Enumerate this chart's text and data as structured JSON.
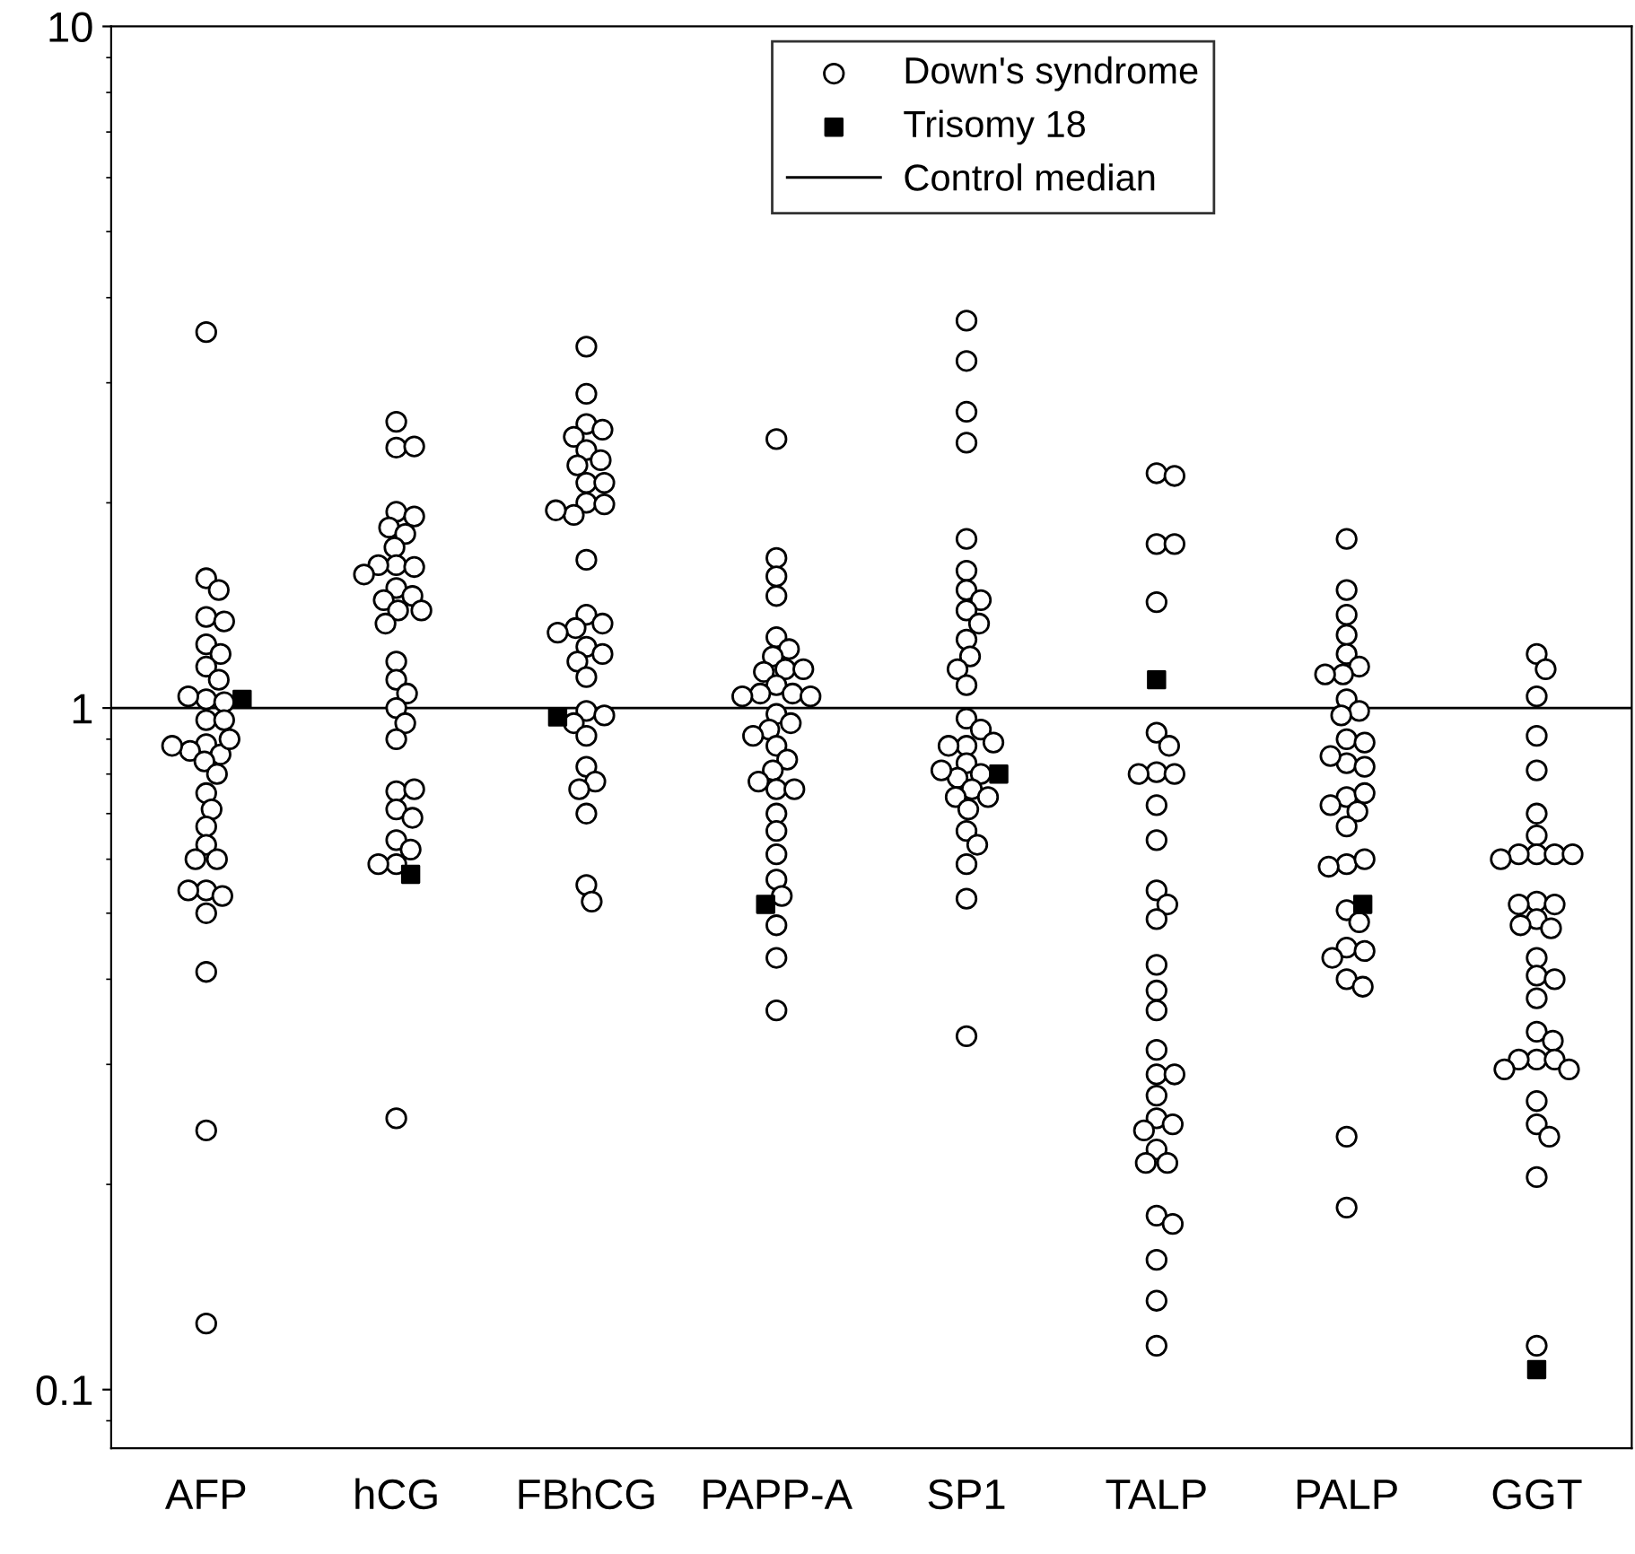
{
  "chart_data": {
    "type": "scatter",
    "categories": [
      "AFP",
      "hCG",
      "FBhCG",
      "PAPP-A",
      "SP1",
      "TALP",
      "PALP",
      "GGT"
    ],
    "log": true,
    "ylim": [
      0.082,
      10
    ],
    "yticks": [
      0.1,
      1,
      10
    ],
    "grid": false,
    "legend": "top",
    "series": [
      {
        "name": "Down's syndrome",
        "color": "#000000",
        "marker": "circle",
        "x": [
          "AFP",
          "AFP",
          "AFP",
          "AFP",
          "AFP",
          "AFP",
          "AFP",
          "AFP",
          "AFP",
          "AFP",
          "AFP",
          "AFP",
          "AFP",
          "AFP",
          "AFP",
          "AFP",
          "AFP",
          "AFP",
          "AFP",
          "AFP",
          "AFP",
          "AFP",
          "AFP",
          "AFP",
          "AFP",
          "AFP",
          "AFP",
          "AFP",
          "AFP",
          "AFP",
          "AFP",
          "AFP",
          "AFP",
          "AFP",
          "hCG",
          "hCG",
          "hCG",
          "hCG",
          "hCG",
          "hCG",
          "hCG",
          "hCG",
          "hCG",
          "hCG",
          "hCG",
          "hCG",
          "hCG",
          "hCG",
          "hCG",
          "hCG",
          "hCG",
          "hCG",
          "hCG",
          "hCG",
          "hCG",
          "hCG",
          "hCG",
          "hCG",
          "hCG",
          "hCG",
          "hCG",
          "hCG",
          "hCG",
          "hCG",
          "hCG",
          "hCG",
          "hCG",
          "FBhCG",
          "FBhCG",
          "FBhCG",
          "FBhCG",
          "FBhCG",
          "FBhCG",
          "FBhCG",
          "FBhCG",
          "FBhCG",
          "FBhCG",
          "FBhCG",
          "FBhCG",
          "FBhCG",
          "FBhCG",
          "FBhCG",
          "FBhCG",
          "FBhCG",
          "FBhCG",
          "FBhCG",
          "FBhCG",
          "FBhCG",
          "FBhCG",
          "FBhCG",
          "FBhCG",
          "FBhCG",
          "FBhCG",
          "FBhCG",
          "FBhCG",
          "FBhCG",
          "FBhCG",
          "FBhCG",
          "FBhCG",
          "FBhCG",
          "PAPP-A",
          "PAPP-A",
          "PAPP-A",
          "PAPP-A",
          "PAPP-A",
          "PAPP-A",
          "PAPP-A",
          "PAPP-A",
          "PAPP-A",
          "PAPP-A",
          "PAPP-A",
          "PAPP-A",
          "PAPP-A",
          "PAPP-A",
          "PAPP-A",
          "PAPP-A",
          "PAPP-A",
          "PAPP-A",
          "PAPP-A",
          "PAPP-A",
          "PAPP-A",
          "PAPP-A",
          "PAPP-A",
          "PAPP-A",
          "PAPP-A",
          "PAPP-A",
          "PAPP-A",
          "PAPP-A",
          "PAPP-A",
          "PAPP-A",
          "PAPP-A",
          "PAPP-A",
          "PAPP-A",
          "SP1",
          "SP1",
          "SP1",
          "SP1",
          "SP1",
          "SP1",
          "SP1",
          "SP1",
          "SP1",
          "SP1",
          "SP1",
          "SP1",
          "SP1",
          "SP1",
          "SP1",
          "SP1",
          "SP1",
          "SP1",
          "SP1",
          "SP1",
          "SP1",
          "SP1",
          "SP1",
          "SP1",
          "SP1",
          "SP1",
          "SP1",
          "SP1",
          "SP1",
          "SP1",
          "SP1",
          "SP1",
          "TALP",
          "TALP",
          "TALP",
          "TALP",
          "TALP",
          "TALP",
          "TALP",
          "TALP",
          "TALP",
          "TALP",
          "TALP",
          "TALP",
          "TALP",
          "TALP",
          "TALP",
          "TALP",
          "TALP",
          "TALP",
          "TALP",
          "TALP",
          "TALP",
          "TALP",
          "TALP",
          "TALP",
          "TALP",
          "TALP",
          "TALP",
          "TALP",
          "TALP",
          "TALP",
          "TALP",
          "TALP",
          "TALP",
          "PALP",
          "PALP",
          "PALP",
          "PALP",
          "PALP",
          "PALP",
          "PALP",
          "PALP",
          "PALP",
          "PALP",
          "PALP",
          "PALP",
          "PALP",
          "PALP",
          "PALP",
          "PALP",
          "PALP",
          "PALP",
          "PALP",
          "PALP",
          "PALP",
          "PALP",
          "PALP",
          "PALP",
          "PALP",
          "PALP",
          "PALP",
          "PALP",
          "PALP",
          "PALP",
          "PALP",
          "PALP",
          "PALP",
          "GGT",
          "GGT",
          "GGT",
          "GGT",
          "GGT",
          "GGT",
          "GGT",
          "GGT",
          "GGT",
          "GGT",
          "GGT",
          "GGT",
          "GGT",
          "GGT",
          "GGT",
          "GGT",
          "GGT",
          "GGT",
          "GGT",
          "GGT",
          "GGT",
          "GGT",
          "GGT",
          "GGT",
          "GGT",
          "GGT",
          "GGT",
          "GGT",
          "GGT",
          "GGT",
          "GGT",
          "GGT",
          "GGT",
          "GGT"
        ],
        "values": [
          3.56,
          1.55,
          1.49,
          1.36,
          1.34,
          1.24,
          1.2,
          1.15,
          1.1,
          1.03,
          1.02,
          1.04,
          0.96,
          0.96,
          0.885,
          0.855,
          0.865,
          0.9,
          0.88,
          0.835,
          0.8,
          0.75,
          0.71,
          0.67,
          0.63,
          0.6,
          0.6,
          0.54,
          0.53,
          0.54,
          0.5,
          0.41,
          0.24,
          0.125,
          2.63,
          2.41,
          2.42,
          1.94,
          1.91,
          1.84,
          1.8,
          1.72,
          1.62,
          1.61,
          1.62,
          1.57,
          1.5,
          1.46,
          1.44,
          1.39,
          1.39,
          1.33,
          1.17,
          1.1,
          1.05,
          1.0,
          0.95,
          0.9,
          0.755,
          0.76,
          0.71,
          0.69,
          0.64,
          0.62,
          0.59,
          0.59,
          0.25,
          3.39,
          2.89,
          2.61,
          2.56,
          2.5,
          2.39,
          2.31,
          2.27,
          2.14,
          2.14,
          2.0,
          1.99,
          1.92,
          1.95,
          1.65,
          1.37,
          1.33,
          1.31,
          1.29,
          1.23,
          1.2,
          1.17,
          1.11,
          0.99,
          0.975,
          0.95,
          0.91,
          0.82,
          0.78,
          0.76,
          0.7,
          0.55,
          0.52,
          2.48,
          1.66,
          1.56,
          1.46,
          1.27,
          1.22,
          1.19,
          1.14,
          1.13,
          1.14,
          1.08,
          1.05,
          1.05,
          1.04,
          1.04,
          0.98,
          0.95,
          0.93,
          0.91,
          0.88,
          0.84,
          0.81,
          0.76,
          0.76,
          0.78,
          0.7,
          0.66,
          0.61,
          0.56,
          0.53,
          0.48,
          0.43,
          0.36,
          3.7,
          3.23,
          2.72,
          2.45,
          1.77,
          1.59,
          1.49,
          1.44,
          1.39,
          1.33,
          1.26,
          1.19,
          1.14,
          1.08,
          0.965,
          0.93,
          0.88,
          0.88,
          0.89,
          0.83,
          0.8,
          0.79,
          0.81,
          0.76,
          0.74,
          0.74,
          0.71,
          0.66,
          0.63,
          0.59,
          0.525,
          0.33,
          2.21,
          2.19,
          1.74,
          1.74,
          1.43,
          0.92,
          0.88,
          0.805,
          0.8,
          0.8,
          0.72,
          0.64,
          0.54,
          0.515,
          0.49,
          0.42,
          0.385,
          0.36,
          0.315,
          0.29,
          0.29,
          0.27,
          0.25,
          0.245,
          0.24,
          0.225,
          0.215,
          0.215,
          0.18,
          0.175,
          0.155,
          0.135,
          0.116,
          1.77,
          1.49,
          1.37,
          1.28,
          1.2,
          1.15,
          1.12,
          1.12,
          1.03,
          0.99,
          0.975,
          0.9,
          0.89,
          0.83,
          0.82,
          0.85,
          0.74,
          0.75,
          0.705,
          0.72,
          0.67,
          0.59,
          0.6,
          0.585,
          0.505,
          0.485,
          0.445,
          0.44,
          0.43,
          0.4,
          0.39,
          0.235,
          0.185,
          1.2,
          1.14,
          1.04,
          0.91,
          0.81,
          0.7,
          0.65,
          0.61,
          0.61,
          0.61,
          0.61,
          0.6,
          0.52,
          0.515,
          0.49,
          0.475,
          0.48,
          0.515,
          0.43,
          0.405,
          0.4,
          0.375,
          0.335,
          0.325,
          0.305,
          0.305,
          0.305,
          0.295,
          0.295,
          0.265,
          0.245,
          0.235,
          0.205,
          0.116
        ]
      },
      {
        "name": "Trisomy 18",
        "color": "#000000",
        "marker": "square",
        "x": [
          "AFP",
          "hCG",
          "FBhCG",
          "PAPP-A",
          "SP1",
          "TALP",
          "PALP",
          "GGT"
        ],
        "values": [
          1.03,
          0.57,
          0.97,
          0.515,
          0.8,
          1.1,
          0.515,
          0.107
        ]
      }
    ],
    "ref_lines": [
      {
        "axis": "y",
        "value": 1,
        "label": "Control median",
        "color": "#000000",
        "line_style": "solid"
      }
    ]
  }
}
